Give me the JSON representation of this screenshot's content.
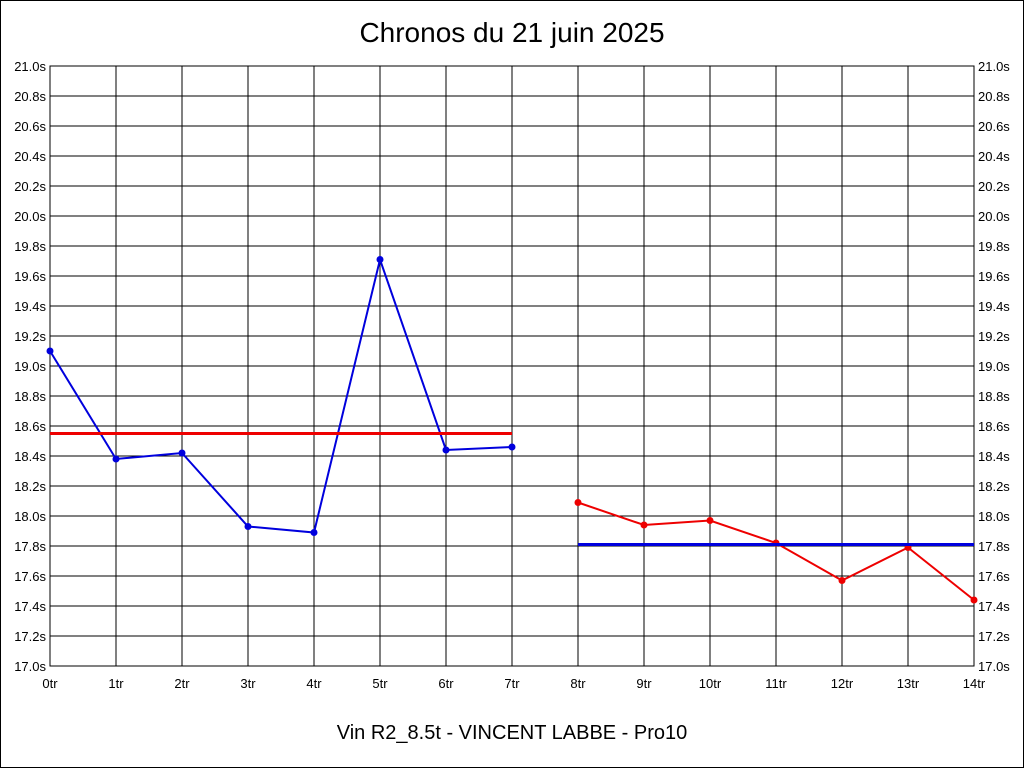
{
  "chart_data": {
    "type": "line",
    "title": "Chronos du 21 juin 2025",
    "subtitle": "Vin R2_8.5t - VINCENT LABBE - Pro10",
    "xlabel": "",
    "ylabel": "",
    "x_ticks": [
      "0tr",
      "1tr",
      "2tr",
      "3tr",
      "4tr",
      "5tr",
      "6tr",
      "7tr",
      "8tr",
      "9tr",
      "10tr",
      "11tr",
      "12tr",
      "13tr",
      "14tr"
    ],
    "y_ticks": [
      "17.0s",
      "17.2s",
      "17.4s",
      "17.6s",
      "17.8s",
      "18.0s",
      "18.2s",
      "18.4s",
      "18.6s",
      "18.8s",
      "19.0s",
      "19.2s",
      "19.4s",
      "19.6s",
      "19.8s",
      "20.0s",
      "20.2s",
      "20.4s",
      "20.6s",
      "20.8s",
      "21.0s"
    ],
    "xlim": [
      0,
      14
    ],
    "ylim": [
      17.0,
      21.0
    ],
    "grid": true,
    "series": [
      {
        "x": [
          0,
          1,
          2,
          3,
          4,
          5,
          6,
          7
        ],
        "values": [
          19.1,
          18.38,
          18.42,
          17.93,
          17.89,
          19.71,
          18.44,
          18.46
        ],
        "color": "#0000dd",
        "markers": true
      },
      {
        "x": [
          0,
          7
        ],
        "values": [
          18.55,
          18.55
        ],
        "color": "#ee0000",
        "markers": false
      },
      {
        "x": [
          8,
          9,
          10,
          11,
          12,
          13,
          14
        ],
        "values": [
          18.09,
          17.94,
          17.97,
          17.82,
          17.57,
          17.79,
          17.44
        ],
        "color": "#ee0000",
        "markers": true
      },
      {
        "x": [
          8,
          14
        ],
        "values": [
          17.81,
          17.81
        ],
        "color": "#0000dd",
        "markers": false
      }
    ]
  }
}
